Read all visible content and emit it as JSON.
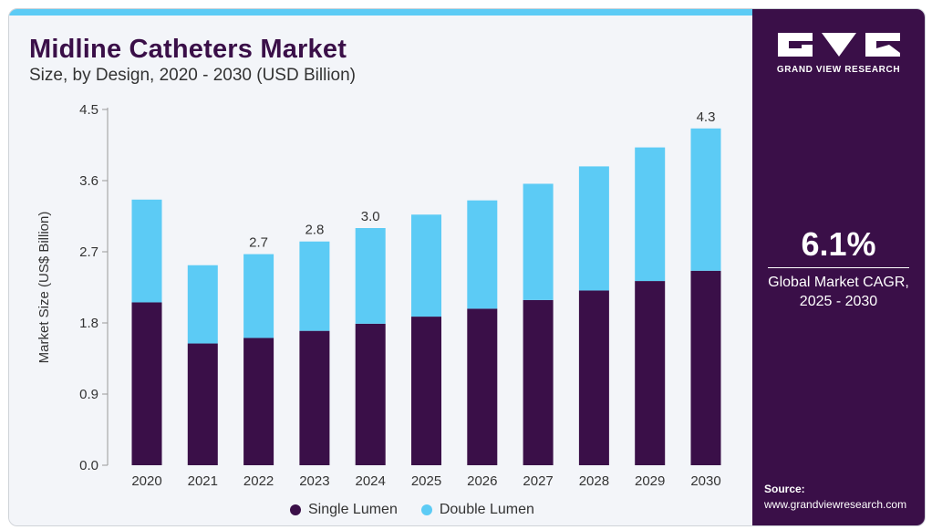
{
  "header": {
    "title": "Midline Catheters Market",
    "subtitle": "Size, by Design, 2020 - 2030 (USD Billion)"
  },
  "chart_data": {
    "type": "bar",
    "stacked": true,
    "categories": [
      "2020",
      "2021",
      "2022",
      "2023",
      "2024",
      "2025",
      "2026",
      "2027",
      "2028",
      "2029",
      "2030"
    ],
    "series": [
      {
        "name": "Single Lumen",
        "color": "#3a0f48",
        "values": [
          2.06,
          1.54,
          1.61,
          1.7,
          1.79,
          1.88,
          1.98,
          2.09,
          2.21,
          2.33,
          2.46
        ]
      },
      {
        "name": "Double Lumen",
        "color": "#5ccbf5",
        "values": [
          1.3,
          0.99,
          1.06,
          1.13,
          1.21,
          1.29,
          1.37,
          1.47,
          1.57,
          1.69,
          1.8
        ]
      }
    ],
    "data_labels": [
      {
        "category": "2022",
        "text": "2.7"
      },
      {
        "category": "2023",
        "text": "2.8"
      },
      {
        "category": "2024",
        "text": "3.0"
      },
      {
        "category": "2030",
        "text": "4.3"
      }
    ],
    "ylabel": "Market Size (US$ Billion)",
    "xlabel": "",
    "ylim": [
      0,
      4.5
    ],
    "yticks": [
      "0.0",
      "0.9",
      "1.8",
      "2.7",
      "3.6",
      "4.5"
    ],
    "grid": false,
    "legend_position": "bottom"
  },
  "sidebar": {
    "logo_icon": "grand-view-research-logo",
    "logo_text": "GRAND VIEW RESEARCH",
    "cagr_value": "6.1%",
    "cagr_label_line1": "Global Market CAGR,",
    "cagr_label_line2": "2025 - 2030",
    "source_label": "Source:",
    "source_url": "www.grandviewresearch.com"
  }
}
